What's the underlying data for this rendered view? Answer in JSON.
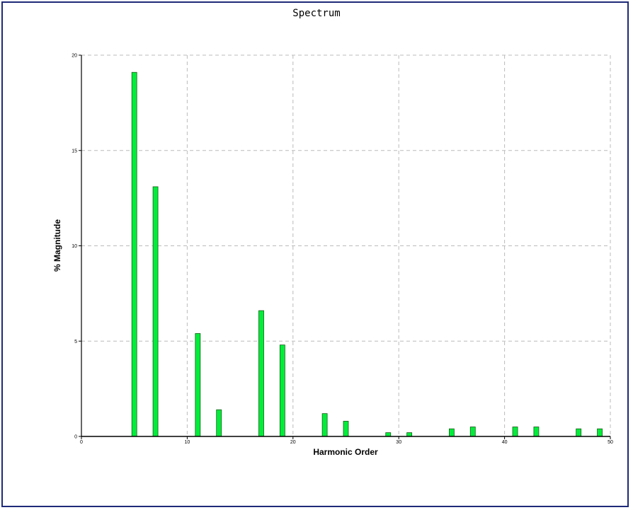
{
  "chart_data": {
    "type": "bar",
    "title": "Spectrum",
    "xlabel": "Harmonic Order",
    "ylabel": "% Magnitude",
    "xlim": [
      0,
      50
    ],
    "ylim": [
      0,
      20
    ],
    "xticks": [
      "0",
      "10",
      "20",
      "30",
      "40",
      "50"
    ],
    "yticks": [
      "0",
      "5",
      "10",
      "15",
      "20"
    ],
    "grid": true,
    "bar_color": "#00ee3a",
    "x": [
      5,
      7,
      11,
      13,
      17,
      19,
      23,
      25,
      29,
      31,
      35,
      37,
      41,
      43,
      47,
      49
    ],
    "values": [
      19.1,
      13.1,
      5.4,
      1.4,
      6.6,
      4.8,
      1.2,
      0.8,
      0.2,
      0.2,
      0.4,
      0.5,
      0.5,
      0.5,
      0.4,
      0.4
    ]
  },
  "colors": {
    "frame_border": "#1e2a78",
    "grid": "#bbbbbb",
    "bar_fill": "#00ee3a",
    "bar_stroke": "#1a5a1a"
  }
}
